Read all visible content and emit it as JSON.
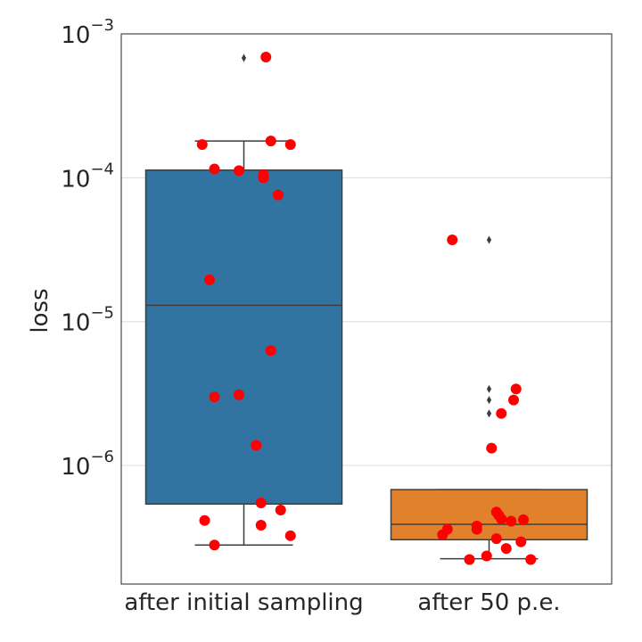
{
  "chart_data": {
    "type": "box",
    "ylabel": "loss",
    "yscale": "log",
    "ylim": [
      1.5e-07,
      0.001
    ],
    "grid": "horizontal",
    "y_ticks": [
      {
        "base": "10",
        "exp": "−6",
        "value": 1e-06
      },
      {
        "base": "10",
        "exp": "−5",
        "value": 1e-05
      },
      {
        "base": "10",
        "exp": "−4",
        "value": 0.0001
      },
      {
        "base": "10",
        "exp": "−3",
        "value": 0.001
      }
    ],
    "categories": [
      "after initial sampling",
      "after 50 p.e."
    ],
    "boxes": [
      {
        "category": "after initial sampling",
        "color": "#3274a1",
        "q1": 5.4e-07,
        "median": 1.3e-05,
        "q3": 0.000113,
        "whisker_low": 2.8e-07,
        "whisker_high": 0.00018,
        "outliers": [
          0.00068
        ]
      },
      {
        "category": "after 50 p.e.",
        "color": "#e1812c",
        "q1": 3.05e-07,
        "median": 3.9e-07,
        "q3": 6.8e-07,
        "whisker_low": 2.25e-07,
        "whisker_high": 6.8e-07,
        "outliers": [
          3.7e-05,
          3.4e-06,
          2.85e-06,
          2.3e-06
        ]
      }
    ],
    "points_color": "#ff0000",
    "points": [
      {
        "category": 0,
        "offset": 0.09,
        "y": 0.00069
      },
      {
        "category": 0,
        "offset": -0.17,
        "y": 0.00017
      },
      {
        "category": 0,
        "offset": 0.11,
        "y": 0.00018
      },
      {
        "category": 0,
        "offset": 0.19,
        "y": 0.00017
      },
      {
        "category": 0,
        "offset": -0.12,
        "y": 0.000115
      },
      {
        "category": 0,
        "offset": -0.02,
        "y": 0.000112
      },
      {
        "category": 0,
        "offset": 0.08,
        "y": 0.000105
      },
      {
        "category": 0,
        "offset": 0.08,
        "y": 0.0001
      },
      {
        "category": 0,
        "offset": 0.14,
        "y": 7.6e-05
      },
      {
        "category": 0,
        "offset": -0.14,
        "y": 1.95e-05
      },
      {
        "category": 0,
        "offset": 0.11,
        "y": 6.3e-06
      },
      {
        "category": 0,
        "offset": -0.12,
        "y": 3e-06
      },
      {
        "category": 0,
        "offset": -0.02,
        "y": 3.1e-06
      },
      {
        "category": 0,
        "offset": 0.05,
        "y": 1.38e-06
      },
      {
        "category": 0,
        "offset": 0.07,
        "y": 5.5e-07
      },
      {
        "category": 0,
        "offset": 0.15,
        "y": 4.9e-07
      },
      {
        "category": 0,
        "offset": -0.16,
        "y": 4.15e-07
      },
      {
        "category": 0,
        "offset": 0.07,
        "y": 3.85e-07
      },
      {
        "category": 0,
        "offset": 0.19,
        "y": 3.25e-07
      },
      {
        "category": 0,
        "offset": -0.12,
        "y": 2.8e-07
      },
      {
        "category": 1,
        "offset": -0.15,
        "y": 3.7e-05
      },
      {
        "category": 1,
        "offset": 0.11,
        "y": 3.4e-06
      },
      {
        "category": 1,
        "offset": 0.1,
        "y": 2.85e-06
      },
      {
        "category": 1,
        "offset": 0.05,
        "y": 2.3e-06
      },
      {
        "category": 1,
        "offset": 0.01,
        "y": 1.32e-06
      },
      {
        "category": 1,
        "offset": 0.03,
        "y": 4.75e-07
      },
      {
        "category": 1,
        "offset": 0.04,
        "y": 4.5e-07
      },
      {
        "category": 1,
        "offset": 0.05,
        "y": 4.25e-07
      },
      {
        "category": 1,
        "offset": 0.09,
        "y": 4.1e-07
      },
      {
        "category": 1,
        "offset": 0.14,
        "y": 4.2e-07
      },
      {
        "category": 1,
        "offset": -0.05,
        "y": 3.8e-07
      },
      {
        "category": 1,
        "offset": -0.05,
        "y": 3.6e-07
      },
      {
        "category": 1,
        "offset": -0.17,
        "y": 3.6e-07
      },
      {
        "category": 1,
        "offset": -0.19,
        "y": 3.3e-07
      },
      {
        "category": 1,
        "offset": 0.03,
        "y": 3.1e-07
      },
      {
        "category": 1,
        "offset": 0.13,
        "y": 2.95e-07
      },
      {
        "category": 1,
        "offset": 0.07,
        "y": 2.65e-07
      },
      {
        "category": 1,
        "offset": -0.01,
        "y": 2.35e-07
      },
      {
        "category": 1,
        "offset": -0.08,
        "y": 2.22e-07
      },
      {
        "category": 1,
        "offset": 0.17,
        "y": 2.22e-07
      }
    ]
  }
}
